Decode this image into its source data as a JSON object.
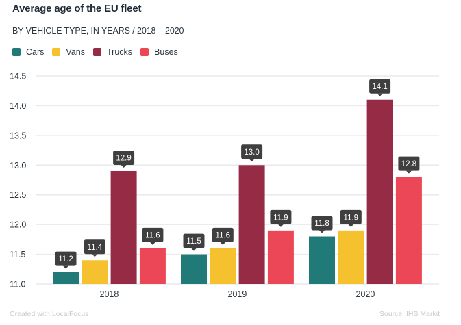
{
  "chart_data": {
    "type": "bar",
    "title": "Average age of the EU fleet",
    "subtitle": "BY VEHICLE TYPE, IN YEARS / 2018 – 2020",
    "xlabel": "",
    "ylabel": "",
    "categories": [
      "2018",
      "2019",
      "2020"
    ],
    "series": [
      {
        "name": "Cars",
        "color": "#1f7a78",
        "values": [
          11.2,
          11.5,
          11.8
        ]
      },
      {
        "name": "Vans",
        "color": "#f5c12e",
        "values": [
          11.4,
          11.6,
          11.9
        ]
      },
      {
        "name": "Trucks",
        "color": "#952b44",
        "values": [
          12.9,
          13.0,
          14.1
        ]
      },
      {
        "name": "Buses",
        "color": "#ec4756",
        "values": [
          11.6,
          11.9,
          12.8
        ]
      }
    ],
    "ylim": [
      11.0,
      14.5
    ],
    "yticks": [
      "11.0",
      "11.5",
      "12.0",
      "12.5",
      "13.0",
      "13.5",
      "14.0",
      "14.5"
    ],
    "grid": true,
    "legend": "top-left",
    "data_labels": true,
    "label_box_color": "#3f3f3f"
  },
  "footer": {
    "credit": "Created with LocalFocus",
    "source": "Source: IHS Markit"
  }
}
